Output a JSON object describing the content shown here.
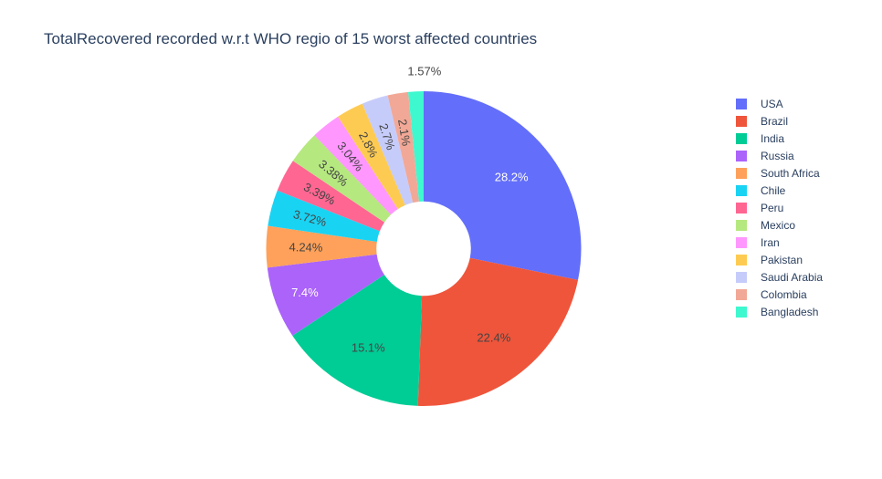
{
  "chart_data": {
    "type": "pie",
    "hole": 0.3,
    "title": "TotalRecovered recorded w.r.t WHO regio of 15 worst affected countries",
    "sort": "descending",
    "direction": "clockwise",
    "legend_position": "right",
    "slices": [
      {
        "label": "USA",
        "percent": 28.2,
        "text": "28.2%",
        "color": "#636efa",
        "text_color": "#ffffff",
        "text_position": "inside",
        "text_orientation": "horizontal"
      },
      {
        "label": "Brazil",
        "percent": 22.4,
        "text": "22.4%",
        "color": "#ef553b",
        "text_color": "#444444",
        "text_position": "inside",
        "text_orientation": "horizontal"
      },
      {
        "label": "India",
        "percent": 15.1,
        "text": "15.1%",
        "color": "#00cc96",
        "text_color": "#444444",
        "text_position": "inside",
        "text_orientation": "horizontal"
      },
      {
        "label": "Russia",
        "percent": 7.4,
        "text": "7.4%",
        "color": "#ab63fa",
        "text_color": "#ffffff",
        "text_position": "inside",
        "text_orientation": "horizontal"
      },
      {
        "label": "South Africa",
        "percent": 4.24,
        "text": "4.24%",
        "color": "#ffa15a",
        "text_color": "#444444",
        "text_position": "inside",
        "text_orientation": "radial"
      },
      {
        "label": "Chile",
        "percent": 3.72,
        "text": "3.72%",
        "color": "#19d3f3",
        "text_color": "#444444",
        "text_position": "inside",
        "text_orientation": "radial"
      },
      {
        "label": "Peru",
        "percent": 3.39,
        "text": "3.39%",
        "color": "#ff6692",
        "text_color": "#444444",
        "text_position": "inside",
        "text_orientation": "radial"
      },
      {
        "label": "Mexico",
        "percent": 3.38,
        "text": "3.38%",
        "color": "#b6e880",
        "text_color": "#444444",
        "text_position": "inside",
        "text_orientation": "radial"
      },
      {
        "label": "Iran",
        "percent": 3.04,
        "text": "3.04%",
        "color": "#ff97ff",
        "text_color": "#444444",
        "text_position": "inside",
        "text_orientation": "radial"
      },
      {
        "label": "Pakistan",
        "percent": 2.8,
        "text": "2.8%",
        "color": "#fecb52",
        "text_color": "#444444",
        "text_position": "inside",
        "text_orientation": "radial"
      },
      {
        "label": "Saudi Arabia",
        "percent": 2.7,
        "text": "2.7%",
        "color": "#c6ccfa",
        "text_color": "#444444",
        "text_position": "inside",
        "text_orientation": "radial"
      },
      {
        "label": "Colombia",
        "percent": 2.1,
        "text": "2.1%",
        "color": "#f2a896",
        "text_color": "#444444",
        "text_position": "inside",
        "text_orientation": "radial"
      },
      {
        "label": "Bangladesh",
        "percent": 1.57,
        "text": "1.57%",
        "color": "#3ef8cf",
        "text_color": "#444444",
        "text_position": "outside",
        "text_orientation": "horizontal"
      }
    ]
  }
}
